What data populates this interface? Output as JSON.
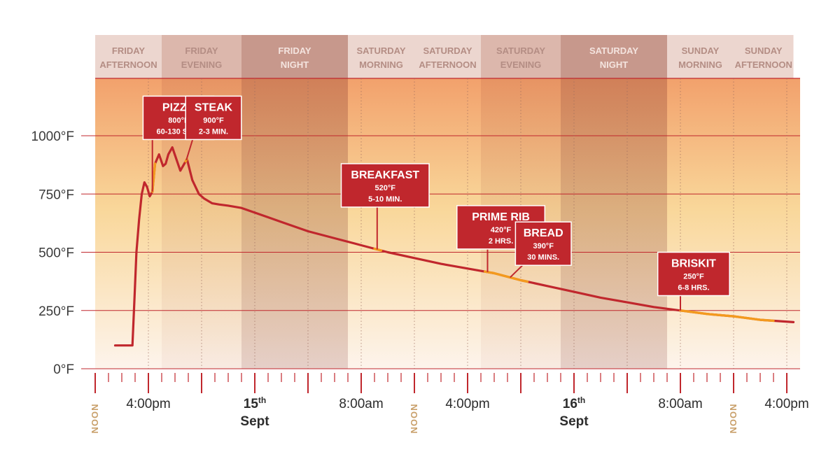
{
  "chart_data": {
    "type": "line",
    "x_unit": "hours after Friday noon",
    "y_unit": "°F",
    "ylim": [
      0,
      1250
    ],
    "yticks": [
      {
        "value": 0,
        "label": "0°F"
      },
      {
        "value": 250,
        "label": "250°F"
      },
      {
        "value": 500,
        "label": "500°F"
      },
      {
        "value": 750,
        "label": "750°F"
      },
      {
        "value": 1000,
        "label": "1000°F"
      }
    ],
    "xlim": [
      0,
      52.5
    ],
    "periods": [
      {
        "line1": "FRIDAY",
        "line2": "AFTERNOON",
        "start": 0,
        "end": 5,
        "shade": "light"
      },
      {
        "line1": "FRIDAY",
        "line2": "EVENING",
        "start": 5,
        "end": 11,
        "shade": "medium"
      },
      {
        "line1": "FRIDAY",
        "line2": "NIGHT",
        "start": 11,
        "end": 19,
        "shade": "dark"
      },
      {
        "line1": "SATURDAY",
        "line2": "MORNING",
        "start": 19,
        "end": 24,
        "shade": "light"
      },
      {
        "line1": "SATURDAY",
        "line2": "AFTERNOON",
        "start": 24,
        "end": 29,
        "shade": "light"
      },
      {
        "line1": "SATURDAY",
        "line2": "EVENING",
        "start": 29,
        "end": 35,
        "shade": "medium"
      },
      {
        "line1": "SATURDAY",
        "line2": "NIGHT",
        "start": 35,
        "end": 43,
        "shade": "dark"
      },
      {
        "line1": "SUNDAY",
        "line2": "MORNING",
        "start": 43,
        "end": 48,
        "shade": "light"
      },
      {
        "line1": "SUNDAY",
        "line2": "AFTERNOON",
        "start": 48,
        "end": 52.5,
        "shade": "light"
      }
    ],
    "x_labels": [
      {
        "x": 4,
        "text": "4:00pm"
      },
      {
        "x": 12,
        "line1": "15th",
        "line2": "Sept",
        "bold": true
      },
      {
        "x": 20,
        "text": "8:00am"
      },
      {
        "x": 28,
        "text": "4:00pm"
      },
      {
        "x": 36,
        "line1": "16th",
        "line2": "Sept",
        "bold": true
      },
      {
        "x": 44,
        "text": "8:00am"
      },
      {
        "x": 52,
        "text": "4:00pm"
      }
    ],
    "noon_markers": [
      0,
      24,
      48
    ],
    "noon_label": "NOON",
    "series": [
      {
        "points": [
          [
            1.5,
            100
          ],
          [
            2.8,
            100
          ],
          [
            2.95,
            300
          ],
          [
            3.1,
            500
          ],
          [
            3.3,
            640
          ],
          [
            3.5,
            750
          ],
          [
            3.7,
            800
          ],
          [
            3.9,
            780
          ],
          [
            4.1,
            740
          ],
          [
            4.3,
            760
          ],
          [
            4.5,
            880
          ],
          [
            4.8,
            920
          ],
          [
            5.1,
            870
          ],
          [
            5.3,
            880
          ],
          [
            5.5,
            920
          ],
          [
            5.8,
            950
          ],
          [
            6.1,
            900
          ],
          [
            6.4,
            850
          ],
          [
            6.6,
            870
          ],
          [
            6.9,
            900
          ],
          [
            7.3,
            810
          ],
          [
            7.8,
            750
          ],
          [
            8.2,
            730
          ],
          [
            8.8,
            710
          ],
          [
            9.3,
            705
          ],
          [
            10,
            700
          ],
          [
            11,
            690
          ],
          [
            12,
            670
          ],
          [
            14,
            630
          ],
          [
            16,
            590
          ],
          [
            18,
            560
          ],
          [
            20,
            530
          ],
          [
            22,
            500
          ],
          [
            24,
            475
          ],
          [
            26,
            450
          ],
          [
            28,
            430
          ],
          [
            30,
            410
          ],
          [
            32,
            380
          ],
          [
            34,
            355
          ],
          [
            36,
            330
          ],
          [
            38,
            305
          ],
          [
            40,
            285
          ],
          [
            42,
            265
          ],
          [
            44,
            250
          ],
          [
            46,
            235
          ],
          [
            48,
            225
          ],
          [
            50,
            210
          ],
          [
            52.5,
            200
          ]
        ]
      }
    ],
    "highlights": [
      {
        "from": 4.3,
        "to": 4.5
      },
      {
        "from": 6.8,
        "to": 6.9
      },
      {
        "from": 21,
        "to": 21.5
      },
      {
        "from": 29.3,
        "to": 31.5
      },
      {
        "from": 31.5,
        "to": 32.5
      },
      {
        "from": 44,
        "to": 51
      }
    ],
    "callouts": [
      {
        "name": "PIZZA",
        "temp": "800°F",
        "time": "60-130 SEC.",
        "box_x": 3.6,
        "box_y": 1170,
        "anchor_x": 4.3
      },
      {
        "name": "STEAK",
        "temp": "900°F",
        "time": "2-3 MIN.",
        "box_x": 6.8,
        "box_y": 1170,
        "anchor_x": 6.85
      },
      {
        "name": "BREAKFAST",
        "temp": "520°F",
        "time": "5-10 MIN.",
        "box_x": 18.5,
        "box_y": 880,
        "anchor_x": 21.2
      },
      {
        "name": "PRIME RIB",
        "temp": "420°F",
        "time": "2 HRS.",
        "box_x": 27.2,
        "box_y": 700,
        "anchor_x": 29.5
      },
      {
        "name": "BREAD",
        "temp": "390°F",
        "time": "30 MINS.",
        "box_x": 31.6,
        "box_y": 630,
        "anchor_x": 31.2
      },
      {
        "name": "BRISKIT",
        "temp": "250°F",
        "time": "6-8 HRS.",
        "box_x": 42.3,
        "box_y": 500,
        "anchor_x": 44
      }
    ]
  },
  "colors": {
    "line": "#c0272d",
    "highlight": "#f39a1e",
    "callout_fill": "#c0272d",
    "gridline": "#c0272d",
    "axis": "#c0272d",
    "header_light": "#ecd6cf",
    "header_medium": "#dcb7ac",
    "header_dark": "#c7988c",
    "header_text_light": "#b48d84",
    "header_text_dark": "#f4e4df",
    "bg_top": "#f2a16c",
    "bg_mid": "#f9d79a",
    "bg_bottom": "#fdf4ec"
  }
}
